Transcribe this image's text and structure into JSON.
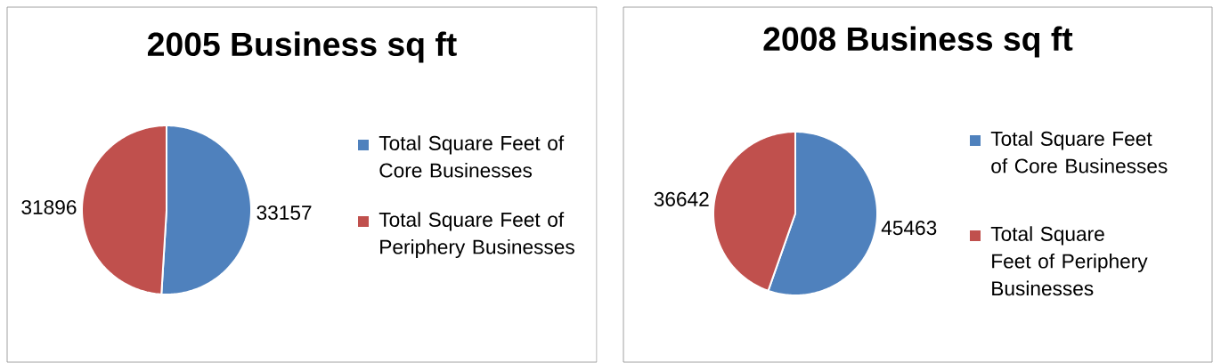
{
  "chart_data": [
    {
      "type": "pie",
      "title": "2005 Business sq ft",
      "categories": [
        "Total Square Feet of Core Businesses",
        "Total Square Feet of Periphery Businesses"
      ],
      "values": [
        33157,
        31896
      ],
      "colors": [
        "#4f81bd",
        "#c0504d"
      ],
      "data_labels": true,
      "legend": "right"
    },
    {
      "type": "pie",
      "title": "2008 Business sq ft",
      "categories": [
        "Total Square Feet of Core Businesses",
        "Total Square Feet of Periphery Businesses"
      ],
      "values": [
        45463,
        36642
      ],
      "colors": [
        "#4f81bd",
        "#c0504d"
      ],
      "data_labels": true,
      "legend": "right"
    }
  ]
}
